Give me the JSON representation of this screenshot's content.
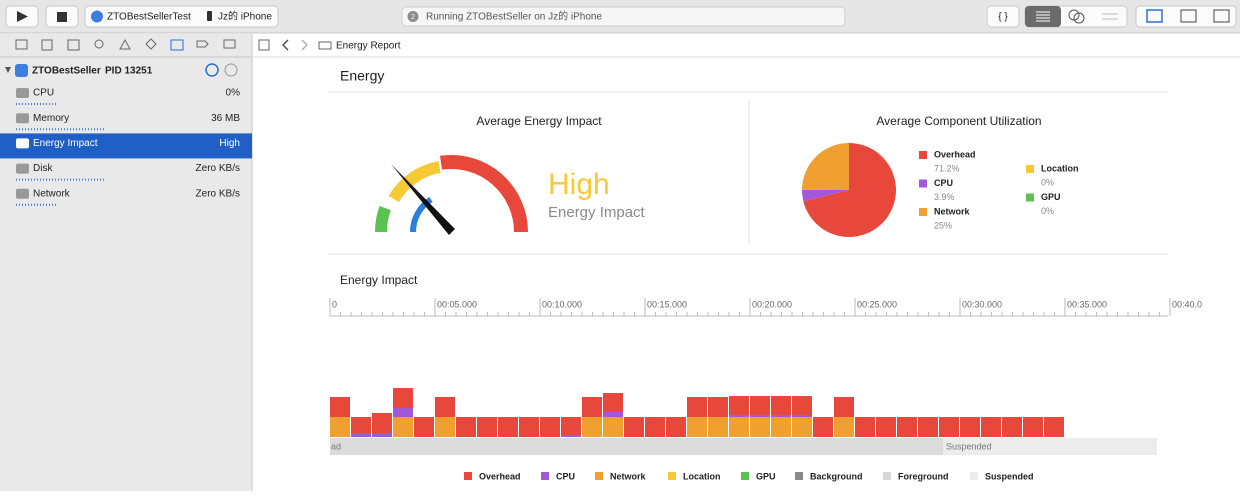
{
  "toolbar": {
    "scheme": "ZTOBestSellerTest",
    "device": "Jz的 iPhone",
    "status_badge": "2",
    "status": "Running ZTOBestSeller on Jz的 iPhone",
    "editor_button": "{ }"
  },
  "navigator": {
    "process": "ZTOBestSeller",
    "pid": "PID 13251",
    "gauges": [
      {
        "name": "CPU",
        "value": "0%"
      },
      {
        "name": "Memory",
        "value": "36 MB"
      },
      {
        "name": "Energy Impact",
        "value": "High"
      },
      {
        "name": "Disk",
        "value": "Zero KB/s"
      },
      {
        "name": "Network",
        "value": "Zero KB/s"
      }
    ]
  },
  "breadcrumb": "Energy Report",
  "report": {
    "title": "Energy",
    "average_impact": {
      "title": "Average Energy Impact",
      "level": "High",
      "caption": "Energy Impact"
    },
    "utilization": {
      "title": "Average Component Utilization",
      "components": [
        {
          "name": "Overhead",
          "color": "#e8483c",
          "value": 71.2,
          "label": "71.2%"
        },
        {
          "name": "CPU",
          "color": "#a259d9",
          "value": 3.9,
          "label": "3.9%"
        },
        {
          "name": "Network",
          "color": "#f0a030",
          "value": 25,
          "label": "25%"
        },
        {
          "name": "Location",
          "color": "#f7c935",
          "value": 0,
          "label": "0%"
        },
        {
          "name": "GPU",
          "color": "#5cc24f",
          "value": 0,
          "label": "0%"
        }
      ]
    },
    "timeline": {
      "title": "Energy Impact",
      "ticks": [
        "0",
        "00:05.000",
        "00:10.000",
        "00:15.000",
        "00:20.000",
        "00:25.000",
        "00:30.000",
        "00:35.000",
        "00:40.0"
      ],
      "states": [
        "ad",
        "Suspended"
      ],
      "series": [
        {
          "name": "Overhead",
          "color": "#e8483c",
          "values": [
            20,
            16,
            20,
            20,
            20,
            20,
            20,
            20,
            20,
            20,
            20,
            18,
            20,
            19,
            20,
            20,
            20,
            20,
            20,
            19,
            19,
            19,
            19,
            20,
            20,
            20,
            20,
            20,
            20,
            20,
            20,
            20,
            20,
            20,
            20
          ]
        },
        {
          "name": "CPU",
          "color": "#a259d9",
          "values": [
            0,
            4,
            4,
            9,
            0,
            0,
            0,
            0,
            0,
            0,
            0,
            2,
            0,
            5,
            0,
            0,
            0,
            0,
            0,
            2,
            2,
            2,
            2,
            0,
            0,
            0,
            0,
            0,
            0,
            0,
            0,
            0,
            0,
            0,
            0
          ]
        },
        {
          "name": "Network",
          "color": "#f0a030",
          "values": [
            20,
            0,
            0,
            20,
            0,
            20,
            0,
            0,
            0,
            0,
            0,
            0,
            20,
            20,
            0,
            0,
            0,
            20,
            20,
            20,
            20,
            20,
            20,
            0,
            20,
            0,
            0,
            0,
            0,
            0,
            0,
            0,
            0,
            0,
            0
          ]
        },
        {
          "name": "Location",
          "color": "#f7c935"
        },
        {
          "name": "GPU",
          "color": "#5cc24f"
        },
        {
          "name": "Background",
          "color": "#8a8a8a"
        },
        {
          "name": "Foreground",
          "color": "#d6d6d6"
        },
        {
          "name": "Suspended",
          "color": "#ececec"
        }
      ]
    }
  }
}
